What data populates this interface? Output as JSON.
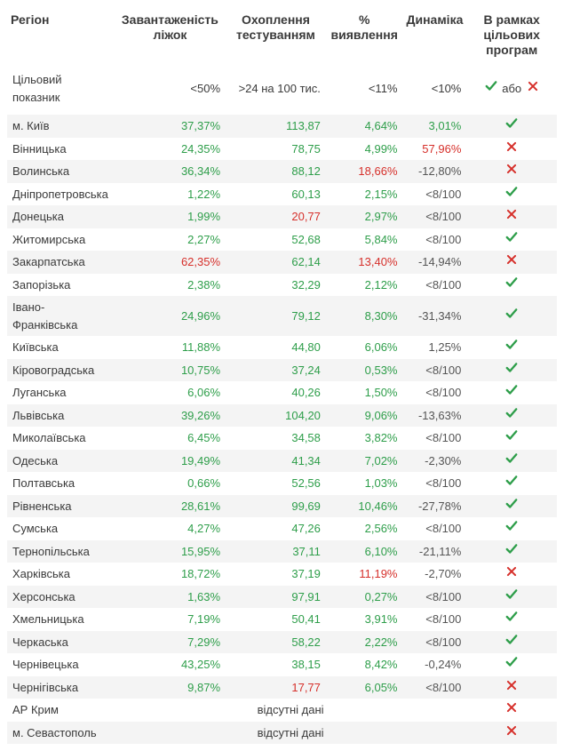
{
  "headers": {
    "region": "Регіон",
    "beds": "Завантаженість ліжок",
    "testing": "Охоплення тестуванням",
    "detection": "% виявлення",
    "dynamics": "Динаміка",
    "programs": "В рамках цільових програм"
  },
  "target_row": {
    "label": "Цільовий показник",
    "beds": "<50%",
    "testing": ">24 на 100 тис.",
    "detection": "<11%",
    "dynamics": "<10%",
    "programs_or": "або"
  },
  "colors": {
    "green": "#2e9e4a",
    "red": "#d6302b",
    "gray": "#555555",
    "header": "#3a3a3a",
    "zebra": "#f4f4f4",
    "background": "#ffffff"
  },
  "no_data_text": "відсутні дані",
  "rows": [
    {
      "region": "м. Київ",
      "beds": "37,37%",
      "beds_c": "green",
      "testing": "113,87",
      "testing_c": "green",
      "detection": "4,64%",
      "detection_c": "green",
      "dynamics": "3,01%",
      "dynamics_c": "green",
      "status": "check"
    },
    {
      "region": "Вінницька",
      "beds": "24,35%",
      "beds_c": "green",
      "testing": "78,75",
      "testing_c": "green",
      "detection": "4,99%",
      "detection_c": "green",
      "dynamics": "57,96%",
      "dynamics_c": "red",
      "status": "cross"
    },
    {
      "region": "Волинська",
      "beds": "36,34%",
      "beds_c": "green",
      "testing": "88,12",
      "testing_c": "green",
      "detection": "18,66%",
      "detection_c": "red",
      "dynamics": "-12,80%",
      "dynamics_c": "gray",
      "status": "cross"
    },
    {
      "region": "Дніпропетровська",
      "beds": "1,22%",
      "beds_c": "green",
      "testing": "60,13",
      "testing_c": "green",
      "detection": "2,15%",
      "detection_c": "green",
      "dynamics": "<8/100",
      "dynamics_c": "gray",
      "status": "check"
    },
    {
      "region": "Донецька",
      "beds": "1,99%",
      "beds_c": "green",
      "testing": "20,77",
      "testing_c": "red",
      "detection": "2,97%",
      "detection_c": "green",
      "dynamics": "<8/100",
      "dynamics_c": "gray",
      "status": "cross"
    },
    {
      "region": "Житомирська",
      "beds": "2,27%",
      "beds_c": "green",
      "testing": "52,68",
      "testing_c": "green",
      "detection": "5,84%",
      "detection_c": "green",
      "dynamics": "<8/100",
      "dynamics_c": "gray",
      "status": "check"
    },
    {
      "region": "Закарпатська",
      "beds": "62,35%",
      "beds_c": "red",
      "testing": "62,14",
      "testing_c": "green",
      "detection": "13,40%",
      "detection_c": "red",
      "dynamics": "-14,94%",
      "dynamics_c": "gray",
      "status": "cross"
    },
    {
      "region": "Запорізька",
      "beds": "2,38%",
      "beds_c": "green",
      "testing": "32,29",
      "testing_c": "green",
      "detection": "2,12%",
      "detection_c": "green",
      "dynamics": "<8/100",
      "dynamics_c": "gray",
      "status": "check"
    },
    {
      "region": "Івано-Франківська",
      "beds": "24,96%",
      "beds_c": "green",
      "testing": "79,12",
      "testing_c": "green",
      "detection": "8,30%",
      "detection_c": "green",
      "dynamics": "-31,34%",
      "dynamics_c": "gray",
      "status": "check"
    },
    {
      "region": "Київська",
      "beds": "11,88%",
      "beds_c": "green",
      "testing": "44,80",
      "testing_c": "green",
      "detection": "6,06%",
      "detection_c": "green",
      "dynamics": "1,25%",
      "dynamics_c": "gray",
      "status": "check"
    },
    {
      "region": "Кіровоградська",
      "beds": "10,75%",
      "beds_c": "green",
      "testing": "37,24",
      "testing_c": "green",
      "detection": "0,53%",
      "detection_c": "green",
      "dynamics": "<8/100",
      "dynamics_c": "gray",
      "status": "check"
    },
    {
      "region": "Луганська",
      "beds": "6,06%",
      "beds_c": "green",
      "testing": "40,26",
      "testing_c": "green",
      "detection": "1,50%",
      "detection_c": "green",
      "dynamics": "<8/100",
      "dynamics_c": "gray",
      "status": "check"
    },
    {
      "region": "Львівська",
      "beds": "39,26%",
      "beds_c": "green",
      "testing": "104,20",
      "testing_c": "green",
      "detection": "9,06%",
      "detection_c": "green",
      "dynamics": "-13,63%",
      "dynamics_c": "gray",
      "status": "check"
    },
    {
      "region": "Миколаївська",
      "beds": "6,45%",
      "beds_c": "green",
      "testing": "34,58",
      "testing_c": "green",
      "detection": "3,82%",
      "detection_c": "green",
      "dynamics": "<8/100",
      "dynamics_c": "gray",
      "status": "check"
    },
    {
      "region": "Одеська",
      "beds": "19,49%",
      "beds_c": "green",
      "testing": "41,34",
      "testing_c": "green",
      "detection": "7,02%",
      "detection_c": "green",
      "dynamics": "-2,30%",
      "dynamics_c": "gray",
      "status": "check"
    },
    {
      "region": "Полтавська",
      "beds": "0,66%",
      "beds_c": "green",
      "testing": "52,56",
      "testing_c": "green",
      "detection": "1,03%",
      "detection_c": "green",
      "dynamics": "<8/100",
      "dynamics_c": "gray",
      "status": "check"
    },
    {
      "region": "Рівненська",
      "beds": "28,61%",
      "beds_c": "green",
      "testing": "99,69",
      "testing_c": "green",
      "detection": "10,46%",
      "detection_c": "green",
      "dynamics": "-27,78%",
      "dynamics_c": "gray",
      "status": "check"
    },
    {
      "region": "Сумська",
      "beds": "4,27%",
      "beds_c": "green",
      "testing": "47,26",
      "testing_c": "green",
      "detection": "2,56%",
      "detection_c": "green",
      "dynamics": "<8/100",
      "dynamics_c": "gray",
      "status": "check"
    },
    {
      "region": "Тернопільська",
      "beds": "15,95%",
      "beds_c": "green",
      "testing": "37,11",
      "testing_c": "green",
      "detection": "6,10%",
      "detection_c": "green",
      "dynamics": "-21,11%",
      "dynamics_c": "gray",
      "status": "check"
    },
    {
      "region": "Харківська",
      "beds": "18,72%",
      "beds_c": "green",
      "testing": "37,19",
      "testing_c": "green",
      "detection": "11,19%",
      "detection_c": "red",
      "dynamics": "-2,70%",
      "dynamics_c": "gray",
      "status": "cross"
    },
    {
      "region": "Херсонська",
      "beds": "1,63%",
      "beds_c": "green",
      "testing": "97,91",
      "testing_c": "green",
      "detection": "0,27%",
      "detection_c": "green",
      "dynamics": "<8/100",
      "dynamics_c": "gray",
      "status": "check"
    },
    {
      "region": "Хмельницька",
      "beds": "7,19%",
      "beds_c": "green",
      "testing": "50,41",
      "testing_c": "green",
      "detection": "3,91%",
      "detection_c": "green",
      "dynamics": "<8/100",
      "dynamics_c": "gray",
      "status": "check"
    },
    {
      "region": "Черкаська",
      "beds": "7,29%",
      "beds_c": "green",
      "testing": "58,22",
      "testing_c": "green",
      "detection": "2,22%",
      "detection_c": "green",
      "dynamics": "<8/100",
      "dynamics_c": "gray",
      "status": "check"
    },
    {
      "region": "Чернівецька",
      "beds": "43,25%",
      "beds_c": "green",
      "testing": "38,15",
      "testing_c": "green",
      "detection": "8,42%",
      "detection_c": "green",
      "dynamics": "-0,24%",
      "dynamics_c": "gray",
      "status": "check"
    },
    {
      "region": "Чернігівська",
      "beds": "9,87%",
      "beds_c": "green",
      "testing": "17,77",
      "testing_c": "red",
      "detection": "6,05%",
      "detection_c": "green",
      "dynamics": "<8/100",
      "dynamics_c": "gray",
      "status": "cross"
    },
    {
      "region": "АР Крим",
      "nodata": true,
      "status": "cross"
    },
    {
      "region": "м. Севастополь",
      "nodata": true,
      "status": "cross"
    }
  ]
}
